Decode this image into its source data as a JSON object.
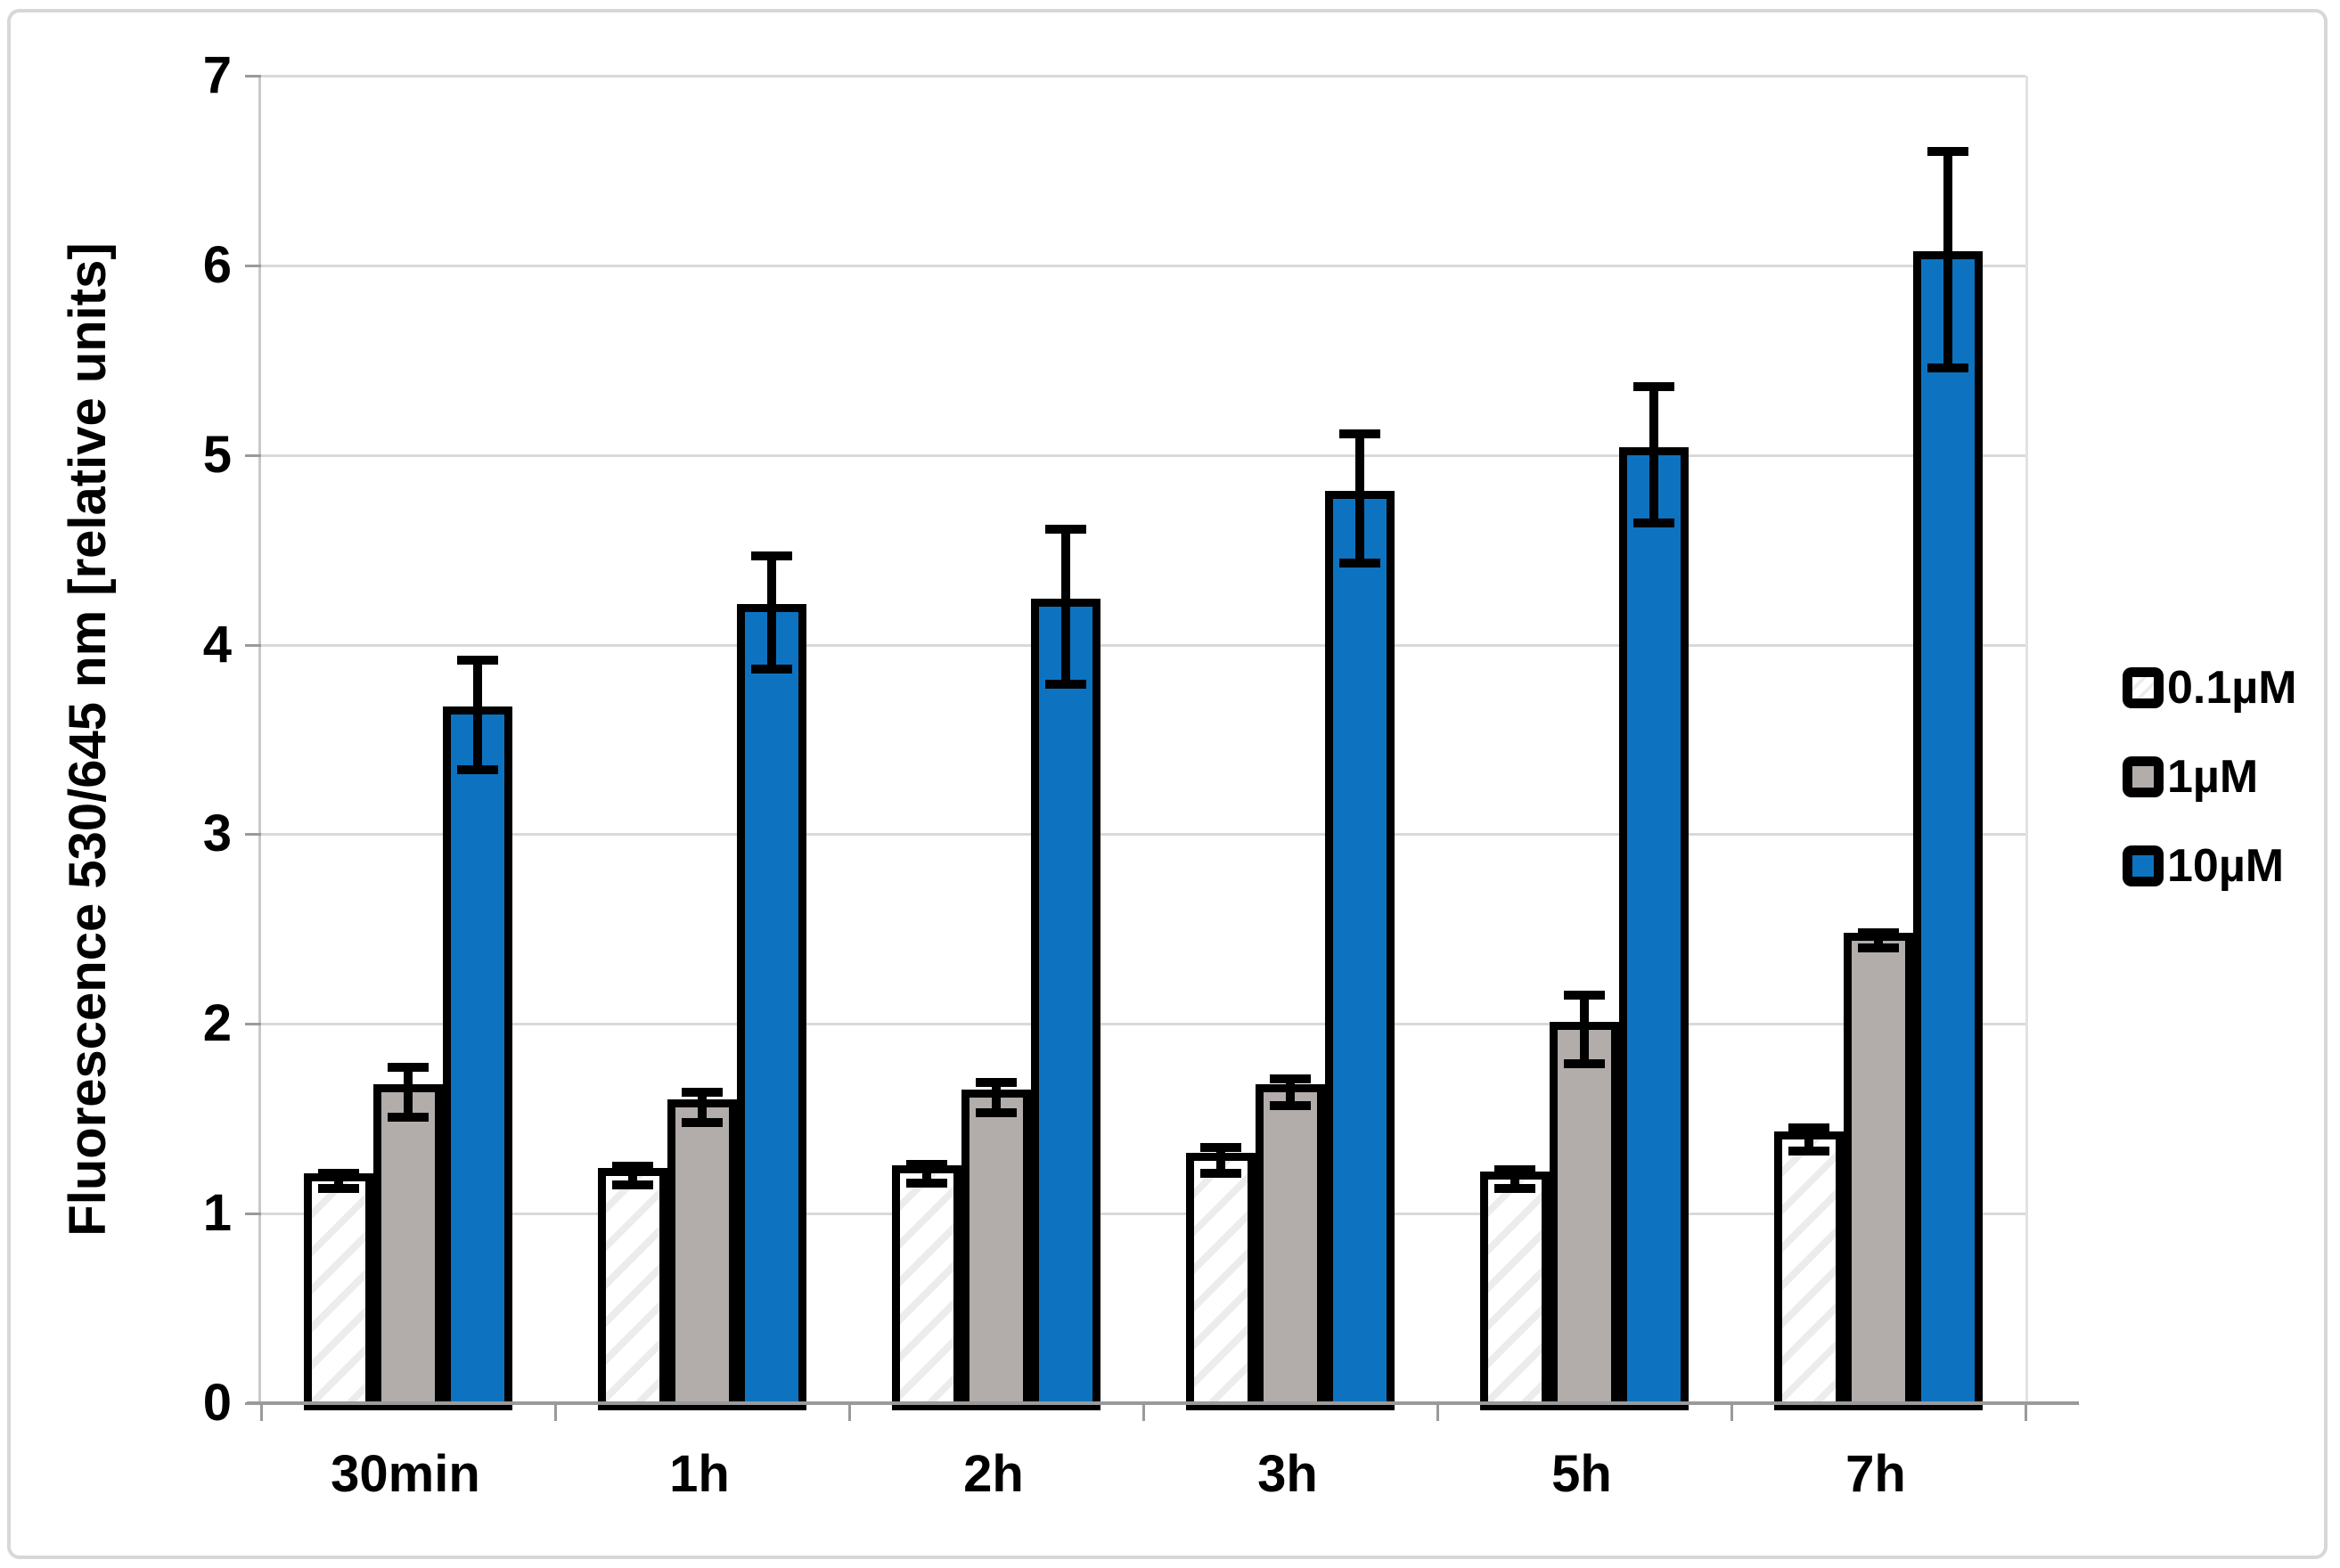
{
  "figure": {
    "background_color": "#ffffff",
    "frame_color": "#d7d7d7"
  },
  "chart_data": {
    "type": "bar",
    "title": "",
    "xlabel": "",
    "ylabel": "Fluorescence 530/645 nm [relative units]",
    "ylim": [
      0,
      7
    ],
    "yticks": [
      0,
      1,
      2,
      3,
      4,
      5,
      6,
      7
    ],
    "grid": "horizontal",
    "legend_position": "right",
    "categories": [
      "30min",
      "1h",
      "2h",
      "3h",
      "5h",
      "7h"
    ],
    "series": [
      {
        "name": "0.1µM",
        "values": [
          1.17,
          1.2,
          1.21,
          1.28,
          1.18,
          1.39
        ],
        "errors": [
          0.04,
          0.05,
          0.05,
          0.07,
          0.05,
          0.06
        ],
        "fill": "#ffffff",
        "hatch": "diagonal-light",
        "hatch_color": "#ececec"
      },
      {
        "name": "1µM",
        "values": [
          1.64,
          1.56,
          1.61,
          1.64,
          1.97,
          2.44
        ],
        "errors": [
          0.13,
          0.08,
          0.08,
          0.07,
          0.18,
          0.04
        ],
        "fill": "#b2adaa",
        "hatch": "none",
        "hatch_color": ""
      },
      {
        "name": "10µM",
        "values": [
          3.63,
          4.17,
          4.2,
          4.77,
          5.0,
          6.03
        ],
        "errors": [
          0.29,
          0.3,
          0.41,
          0.34,
          0.36,
          0.57
        ],
        "fill": "#0d73c0",
        "hatch": "none",
        "hatch_color": ""
      }
    ],
    "bar_outline_color": "#000000",
    "error_bar_color": "#000000",
    "gridline_color": "#d9d9d9",
    "axis_line_color": "#9a9a9a"
  }
}
